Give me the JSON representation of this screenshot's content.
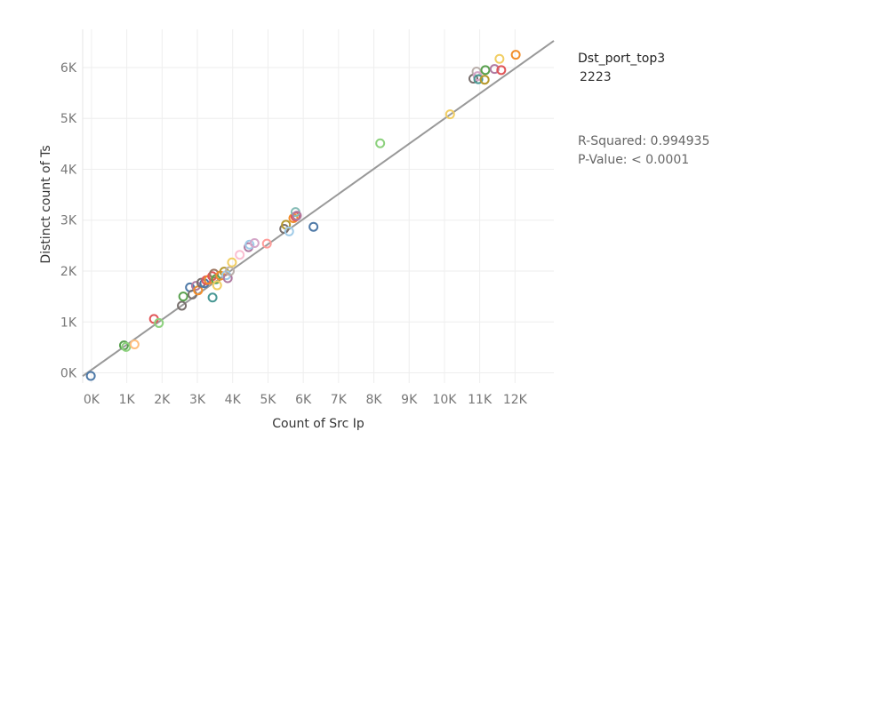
{
  "legend": {
    "title": "Dst_port_top3",
    "value": "2223"
  },
  "stats": {
    "r_squared_label": "R-Squared: 0.994935",
    "p_value_label": "P-Value: < 0.0001"
  },
  "chart_data": {
    "type": "scatter",
    "xlabel": "Count of Src Ip",
    "ylabel": "Distinct count of Ts",
    "xlim": [
      -250,
      13100
    ],
    "ylim": [
      -200,
      6750
    ],
    "x_ticks": [
      0,
      1000,
      2000,
      3000,
      4000,
      5000,
      6000,
      7000,
      8000,
      9000,
      10000,
      11000,
      12000
    ],
    "x_tick_labels": [
      "0K",
      "1K",
      "2K",
      "3K",
      "4K",
      "5K",
      "6K",
      "7K",
      "8K",
      "9K",
      "10K",
      "11K",
      "12K"
    ],
    "y_ticks": [
      0,
      1000,
      2000,
      3000,
      4000,
      5000,
      6000
    ],
    "y_tick_labels": [
      "0K",
      "1K",
      "2K",
      "3K",
      "4K",
      "5K",
      "6K"
    ],
    "grid": true,
    "trend_line": {
      "slope": 0.4935,
      "intercept": 60
    },
    "points": [
      {
        "x": -20,
        "y": -60,
        "color": "#4e79a7"
      },
      {
        "x": 920,
        "y": 540,
        "color": "#59a14f"
      },
      {
        "x": 980,
        "y": 510,
        "color": "#8cd17d"
      },
      {
        "x": 1220,
        "y": 560,
        "color": "#ffbe7d"
      },
      {
        "x": 1770,
        "y": 1060,
        "color": "#e15759"
      },
      {
        "x": 1910,
        "y": 980,
        "color": "#8cd17d"
      },
      {
        "x": 2560,
        "y": 1320,
        "color": "#79706e"
      },
      {
        "x": 2600,
        "y": 1500,
        "color": "#59a14f"
      },
      {
        "x": 2790,
        "y": 1680,
        "color": "#4e79a7"
      },
      {
        "x": 2860,
        "y": 1540,
        "color": "#79706e"
      },
      {
        "x": 2960,
        "y": 1710,
        "color": "#b07aa1"
      },
      {
        "x": 3020,
        "y": 1620,
        "color": "#f28e2b"
      },
      {
        "x": 3110,
        "y": 1770,
        "color": "#79706e"
      },
      {
        "x": 3200,
        "y": 1760,
        "color": "#4e79a7"
      },
      {
        "x": 3250,
        "y": 1820,
        "color": "#e15759"
      },
      {
        "x": 3320,
        "y": 1830,
        "color": "#f28e2b"
      },
      {
        "x": 3420,
        "y": 1900,
        "color": "#e15759"
      },
      {
        "x": 3430,
        "y": 1480,
        "color": "#499894"
      },
      {
        "x": 3470,
        "y": 1950,
        "color": "#9c755f"
      },
      {
        "x": 3520,
        "y": 1840,
        "color": "#59a14f"
      },
      {
        "x": 3560,
        "y": 1720,
        "color": "#f1ce63"
      },
      {
        "x": 3650,
        "y": 1910,
        "color": "#f28e2b"
      },
      {
        "x": 3760,
        "y": 1990,
        "color": "#b6992d"
      },
      {
        "x": 3820,
        "y": 1920,
        "color": "#a0cbe8"
      },
      {
        "x": 3860,
        "y": 1860,
        "color": "#b07aa1"
      },
      {
        "x": 3920,
        "y": 2000,
        "color": "#bab0ac"
      },
      {
        "x": 3980,
        "y": 2170,
        "color": "#f1ce63"
      },
      {
        "x": 4200,
        "y": 2320,
        "color": "#fabfd2"
      },
      {
        "x": 4450,
        "y": 2470,
        "color": "#b07aa1"
      },
      {
        "x": 4480,
        "y": 2520,
        "color": "#a0cbe8"
      },
      {
        "x": 4620,
        "y": 2550,
        "color": "#d4a6c8"
      },
      {
        "x": 4970,
        "y": 2540,
        "color": "#ff9d9a"
      },
      {
        "x": 5460,
        "y": 2830,
        "color": "#79706e"
      },
      {
        "x": 5510,
        "y": 2910,
        "color": "#b6992d"
      },
      {
        "x": 5600,
        "y": 2780,
        "color": "#a0cbe8"
      },
      {
        "x": 5720,
        "y": 3040,
        "color": "#f28e2b"
      },
      {
        "x": 5780,
        "y": 3070,
        "color": "#e15759"
      },
      {
        "x": 5780,
        "y": 3160,
        "color": "#86bcb6"
      },
      {
        "x": 5820,
        "y": 3090,
        "color": "#b07aa1"
      },
      {
        "x": 6290,
        "y": 2870,
        "color": "#4e79a7"
      },
      {
        "x": 8180,
        "y": 4510,
        "color": "#8cd17d"
      },
      {
        "x": 10160,
        "y": 5080,
        "color": "#f1ce63"
      },
      {
        "x": 10820,
        "y": 5780,
        "color": "#79706e"
      },
      {
        "x": 10910,
        "y": 5920,
        "color": "#bab0ac"
      },
      {
        "x": 10940,
        "y": 5830,
        "color": "#d4a6c8"
      },
      {
        "x": 10960,
        "y": 5770,
        "color": "#499894"
      },
      {
        "x": 11140,
        "y": 5760,
        "color": "#b6992d"
      },
      {
        "x": 11160,
        "y": 5950,
        "color": "#59a14f"
      },
      {
        "x": 11420,
        "y": 5970,
        "color": "#b07aa1"
      },
      {
        "x": 11560,
        "y": 6170,
        "color": "#f1ce63"
      },
      {
        "x": 11610,
        "y": 5950,
        "color": "#e15759"
      },
      {
        "x": 12020,
        "y": 6250,
        "color": "#f28e2b"
      }
    ]
  }
}
